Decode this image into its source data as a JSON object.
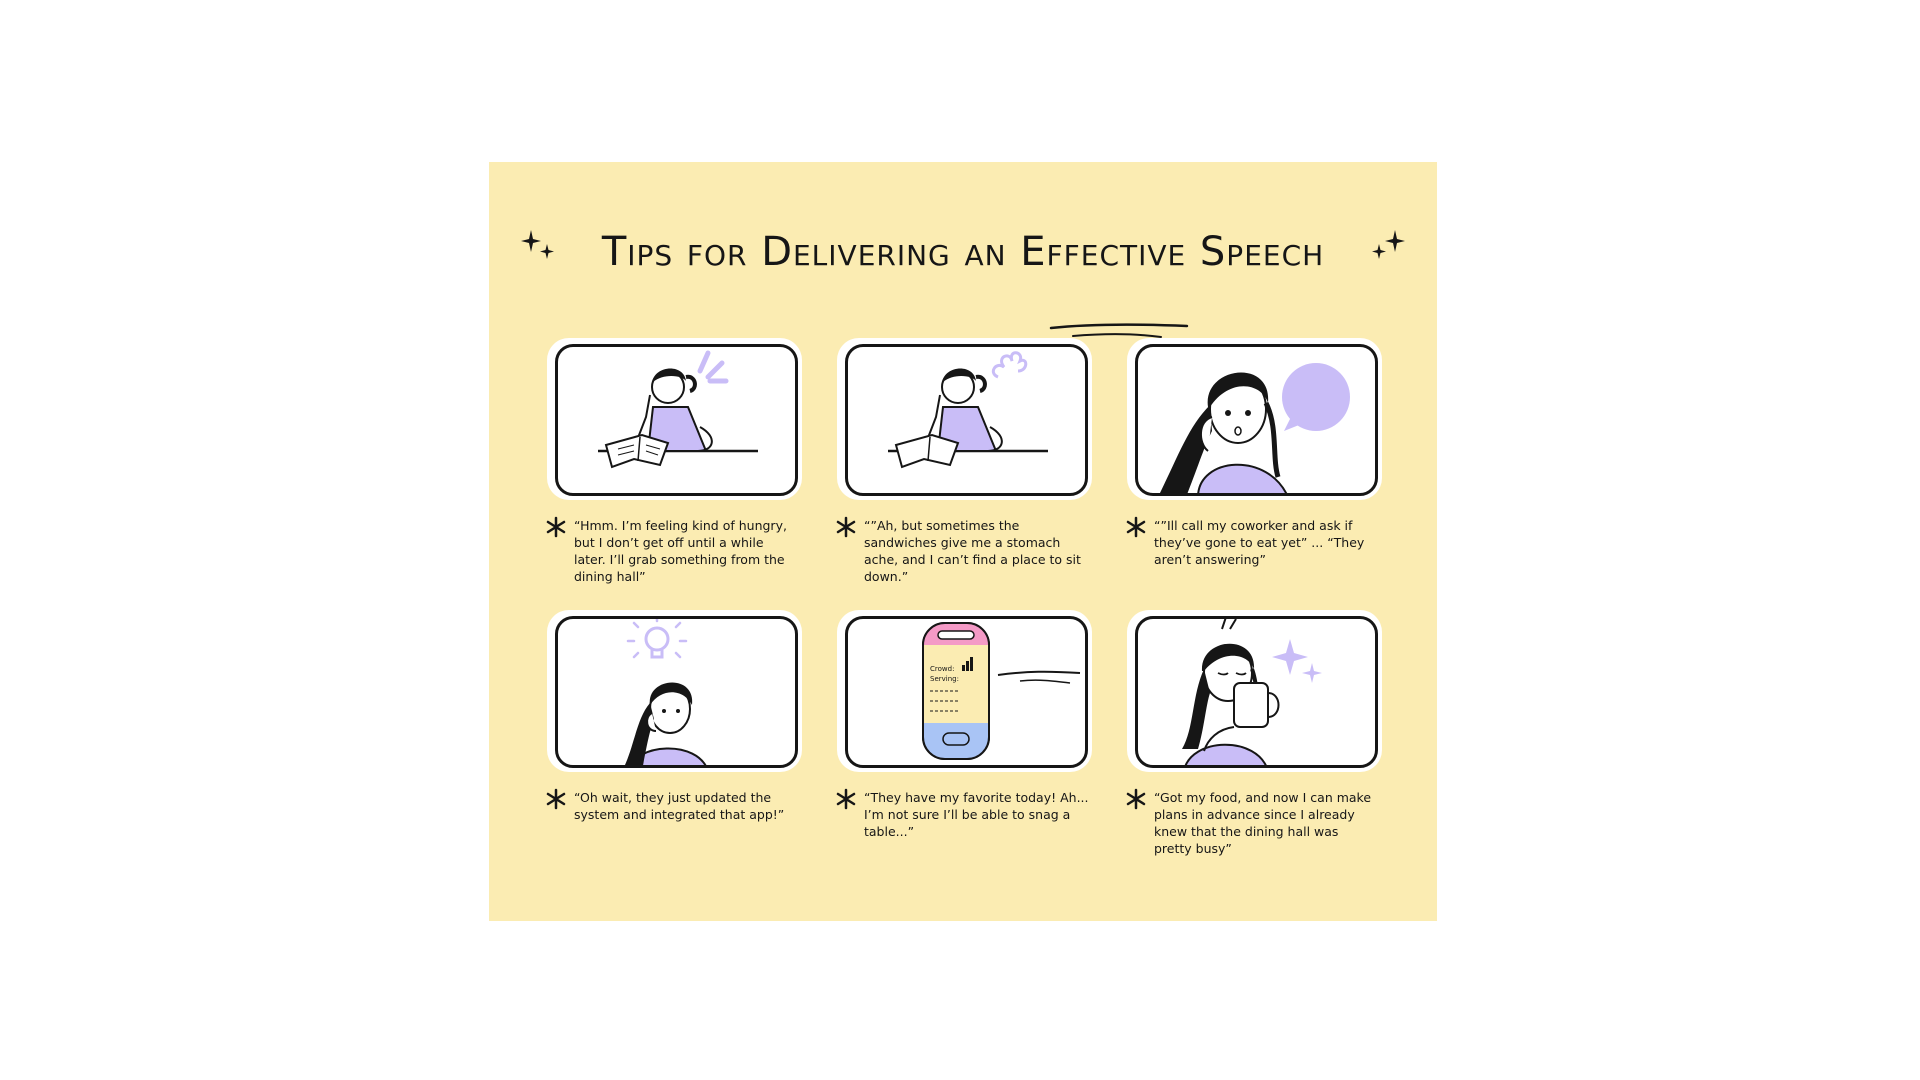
{
  "title": {
    "text": "Tips for Delivering an Effective Speech"
  },
  "colors": {
    "background": "#fbecb2",
    "accent": "#c9bdf7",
    "ink": "#161616",
    "phone_pink": "#f49ac6",
    "phone_blue": "#a9c4f5"
  },
  "panels": [
    {
      "icon": "girl-thinking-reading-icon",
      "caption": "“Hmm. I’m feeling kind of hungry, but I don’t get off until a while later. I’ll grab something from the dining hall”"
    },
    {
      "icon": "girl-worried-reading-icon",
      "caption": "“”Ah, but sometimes the sandwiches give me a stomach ache, and I can’t find a place to sit down.”"
    },
    {
      "icon": "girl-phone-call-icon",
      "caption": "“”Ill call my coworker and ask if they’ve gone to eat yet” ... “They aren’t answering”"
    },
    {
      "icon": "girl-idea-lightbulb-icon",
      "caption": "“Oh wait, they just updated the system and integrated that app!”"
    },
    {
      "icon": "phone-app-icon",
      "app_crowd_label": "Crowd:",
      "app_serving_label": "Serving:",
      "caption": "“They have my favorite today! Ah... I’m not sure I’ll be able to snag a table...”"
    },
    {
      "icon": "girl-drinking-coffee-icon",
      "caption": "“Got my food, and now I can make plans in advance since I already knew that the dining hall was pretty busy”"
    }
  ]
}
